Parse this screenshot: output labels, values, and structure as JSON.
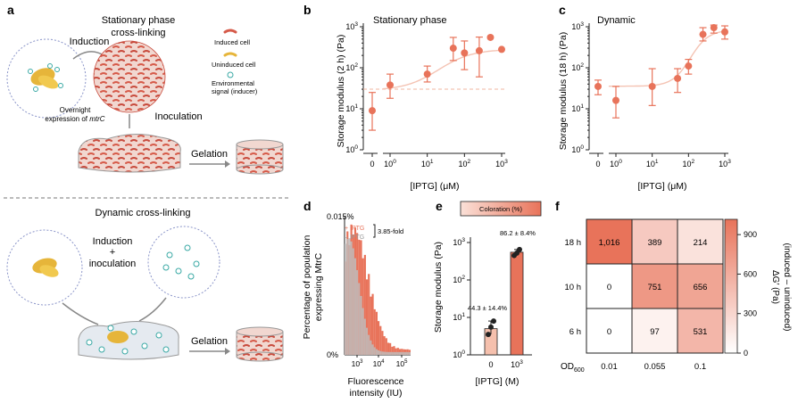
{
  "panels": {
    "a": "a",
    "b": "b",
    "c": "c",
    "d": "d",
    "e": "e",
    "f": "f"
  },
  "colors": {
    "accent": "#e8735a",
    "light": "#f4c3b3",
    "yellow": "#e6b53a",
    "teal": "#3aa9a5",
    "grey": "#bdbdbd",
    "dashed": "#f2b7a2"
  },
  "panel_a": {
    "top_title_1": "Stationary phase",
    "top_title_2": "cross-linking",
    "induction": "Induction",
    "overnight_1": "Overnight",
    "overnight_2": "expression of ",
    "overnight_gene": "mtrC",
    "inoculation": "Inoculation",
    "gelation_top": "Gelation",
    "legend_induced": "Induced cell",
    "legend_uninduced": "Uninduced cell",
    "legend_signal_1": "Environmental",
    "legend_signal_2": "signal (inducer)",
    "bottom_title": "Dynamic cross-linking",
    "induction_2": "Induction",
    "plus": "+",
    "inoculation_2": "inoculation",
    "gelation_bottom": "Gelation"
  },
  "panel_b": {
    "ylabel": "Storage modulus (2 h) (Pa)",
    "xlabel": "[IPTG] (μM)",
    "label": "Stationary phase",
    "yticks": [
      "10^0",
      "10^1",
      "10^2",
      "10^3"
    ],
    "xticks": [
      "0",
      "10^0",
      "10^1",
      "10^2",
      "10^3"
    ]
  },
  "panel_c": {
    "ylabel": "Storage modulus (18 h) (Pa)",
    "xlabel": "[IPTG] (μM)",
    "label": "Dynamic",
    "yticks": [
      "10^0",
      "10^1",
      "10^2",
      "10^3"
    ],
    "xticks": [
      "0",
      "10^0",
      "10^1",
      "10^2",
      "10^3"
    ]
  },
  "panel_d": {
    "ylabel_1": "Percentage of population",
    "ylabel_2": "expressing MtrC",
    "xlabel_1": "Fluorescence",
    "xlabel_2": "intensity (IU)",
    "ytop": "0.015%",
    "ybottom": "0%",
    "legend_plus": "+ IPTG",
    "legend_minus": "– IPTG",
    "fold": "3.85-fold",
    "xticks": [
      "10^3",
      "10^4",
      "10^5"
    ]
  },
  "panel_e": {
    "ylabel": "Storage modulus (Pa)",
    "xlabel": "[IPTG] (M)",
    "coloration": "Coloration (%)",
    "label_low": "44.3 ± 14.4%",
    "label_high": "86.2 ± 8.4%",
    "xticks": [
      "0",
      "10^3"
    ],
    "yticks": [
      "10^0",
      "10^1",
      "10^2",
      "10^3"
    ]
  },
  "panel_f": {
    "ylabel_1": "ΔG′ (Pa)",
    "ylabel_2": "(induced – uninduced)",
    "xlabel": "OD",
    "xlabel_sub": "600",
    "rows": [
      "18 h",
      "10 h",
      "6 h"
    ],
    "cols": [
      "0.01",
      "0.055",
      "0.1"
    ],
    "values": [
      [
        "1,016",
        "389",
        "214"
      ],
      [
        "0",
        "751",
        "656"
      ],
      [
        "0",
        "97",
        "531"
      ]
    ],
    "cbar_ticks": [
      "900",
      "600",
      "300",
      "0"
    ]
  },
  "chart_data": [
    {
      "type": "scatter",
      "panel": "b",
      "title": "Stationary phase",
      "xlabel": "[IPTG] (μM)",
      "ylabel": "Storage modulus (2 h) (Pa)",
      "x": [
        0,
        1,
        10,
        50,
        100,
        250,
        500,
        1000
      ],
      "y": [
        9,
        38,
        70,
        300,
        230,
        260,
        550,
        280
      ],
      "yerr_low": [
        3,
        18,
        45,
        150,
        90,
        60,
        0,
        0
      ],
      "yerr_high": [
        25,
        70,
        110,
        550,
        450,
        560,
        0,
        0
      ],
      "ylim": [
        1,
        1000
      ],
      "xscale": "log",
      "yscale": "log",
      "baseline": 30
    },
    {
      "type": "scatter",
      "panel": "c",
      "title": "Dynamic",
      "xlabel": "[IPTG] (μM)",
      "ylabel": "Storage modulus (18 h) (Pa)",
      "x": [
        0,
        1,
        10,
        50,
        100,
        250,
        500,
        1000
      ],
      "y": [
        35,
        16,
        35,
        55,
        110,
        650,
        950,
        750
      ],
      "yerr_low": [
        22,
        6,
        12,
        25,
        70,
        450,
        700,
        500
      ],
      "yerr_high": [
        50,
        35,
        95,
        95,
        160,
        950,
        1100,
        1050
      ],
      "ylim": [
        1,
        1000
      ],
      "xscale": "log",
      "yscale": "log"
    },
    {
      "type": "bar",
      "panel": "e",
      "categories": [
        "0",
        "10^3"
      ],
      "values": [
        5,
        550
      ],
      "points": [
        [
          3.5,
          5.5,
          8
        ],
        [
          450,
          520,
          650
        ]
      ],
      "ylabel": "Storage modulus (Pa)",
      "xlabel": "[IPTG] (M)",
      "ylim": [
        1,
        1000
      ],
      "coloration": [
        "44.3 ± 14.4%",
        "86.2 ± 8.4%"
      ]
    },
    {
      "type": "heatmap",
      "panel": "f",
      "rows": [
        "18 h",
        "10 h",
        "6 h"
      ],
      "cols": [
        "0.01",
        "0.055",
        "0.1"
      ],
      "values": [
        [
          1016,
          389,
          214
        ],
        [
          0,
          751,
          656
        ],
        [
          0,
          97,
          531
        ]
      ],
      "range": [
        0,
        1016
      ]
    }
  ]
}
